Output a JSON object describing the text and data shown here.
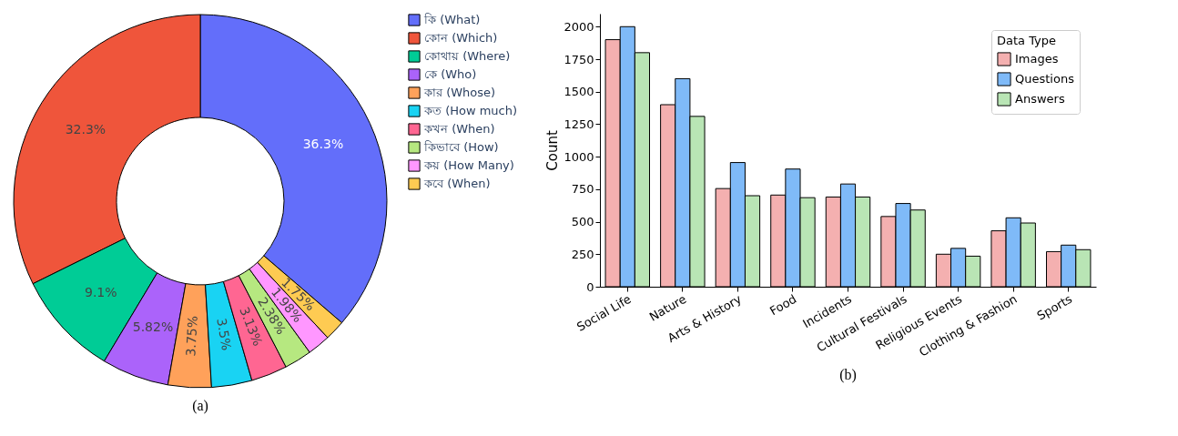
{
  "chart_data": [
    {
      "type": "donut",
      "categories": [
        "কি (What)",
        "কোন (Which)",
        "কোথায় (Where)",
        "কে (Who)",
        "কার (Whose)",
        "কত (How much)",
        "কখন (When)",
        "কিভাবে (How)",
        "কয় (How Many)",
        "কবে (When)"
      ],
      "values": [
        36.3,
        32.3,
        9.1,
        5.82,
        3.75,
        3.5,
        3.13,
        2.38,
        1.98,
        1.75
      ],
      "value_labels": [
        "36.3%",
        "32.3%",
        "9.1%",
        "5.82%",
        "3.75%",
        "3.5%",
        "3.13%",
        "2.38%",
        "1.98%",
        "1.75%"
      ],
      "colors": [
        "#636efa",
        "#ef553b",
        "#00cc96",
        "#ab63fa",
        "#ffa15a",
        "#19d3f3",
        "#ff6692",
        "#b6e880",
        "#ff97ff",
        "#fecb52"
      ],
      "legend": "right",
      "annotations": [
        "(a)"
      ]
    },
    {
      "type": "bar",
      "categories": [
        "Social Life",
        "Nature",
        "Arts & History",
        "Food",
        "Incidents",
        "Cultural Festivals",
        "Religious Events",
        "Clothing & Fashion",
        "Sports"
      ],
      "series": [
        {
          "name": "Images",
          "color": "#f4b0b0",
          "values": [
            1900,
            1400,
            755,
            705,
            690,
            540,
            250,
            430,
            270
          ]
        },
        {
          "name": "Questions",
          "color": "#7fbaf8",
          "values": [
            2000,
            1600,
            955,
            905,
            790,
            640,
            295,
            530,
            320
          ]
        },
        {
          "name": "Answers",
          "color": "#b9e5b5",
          "values": [
            1800,
            1310,
            700,
            685,
            690,
            590,
            235,
            490,
            285
          ]
        }
      ],
      "ylabel": "Count",
      "legend_title": "Data Type",
      "ylim": [
        0,
        2100
      ],
      "yticks": [
        0,
        250,
        500,
        750,
        1000,
        1250,
        1500,
        1750,
        2000
      ],
      "legend": "top right",
      "grid": false,
      "annotations": [
        "(b)"
      ]
    }
  ]
}
